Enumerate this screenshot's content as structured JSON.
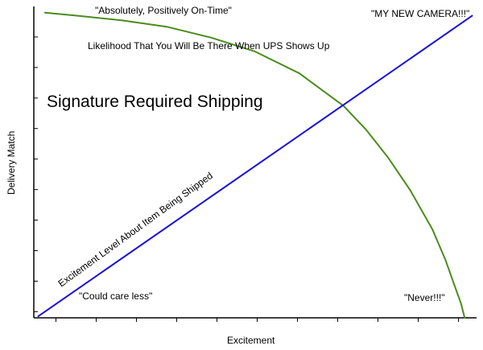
{
  "chart_data": {
    "type": "line",
    "title": "Signature Required Shipping",
    "xlabel": "Excitement",
    "ylabel": "Delivery Match",
    "xlim": [
      0,
      10
    ],
    "ylim": [
      0,
      10
    ],
    "grid": false,
    "x_ticks": 11,
    "y_ticks": 10,
    "series": [
      {
        "name": "Likelihood That You Will Be There When UPS Shows Up",
        "color": "#4a8c1c",
        "shape": "concave-down curve falling steeply at the right",
        "x": [
          0.25,
          1.0,
          2.0,
          3.0,
          4.0,
          5.0,
          6.0,
          7.0,
          7.5,
          8.0,
          8.5,
          9.0,
          9.3,
          9.5,
          9.65,
          9.73
        ],
        "y": [
          9.8,
          9.7,
          9.55,
          9.35,
          9.0,
          8.55,
          7.85,
          6.8,
          6.05,
          5.15,
          4.1,
          2.85,
          1.85,
          1.05,
          0.45,
          0.0
        ]
      },
      {
        "name": "Excitement Level About Item Being Shipped",
        "color": "#1a10d8",
        "x": [
          0.1,
          9.9
        ],
        "y": [
          0.05,
          9.7
        ]
      }
    ],
    "annotations": [
      {
        "text": "\"Absolutely, Positively On-Time\""
      },
      {
        "text": "\"MY NEW CAMERA!!!\""
      },
      {
        "text": "\"Could care less\""
      },
      {
        "text": "\"Never!!!\""
      }
    ]
  }
}
